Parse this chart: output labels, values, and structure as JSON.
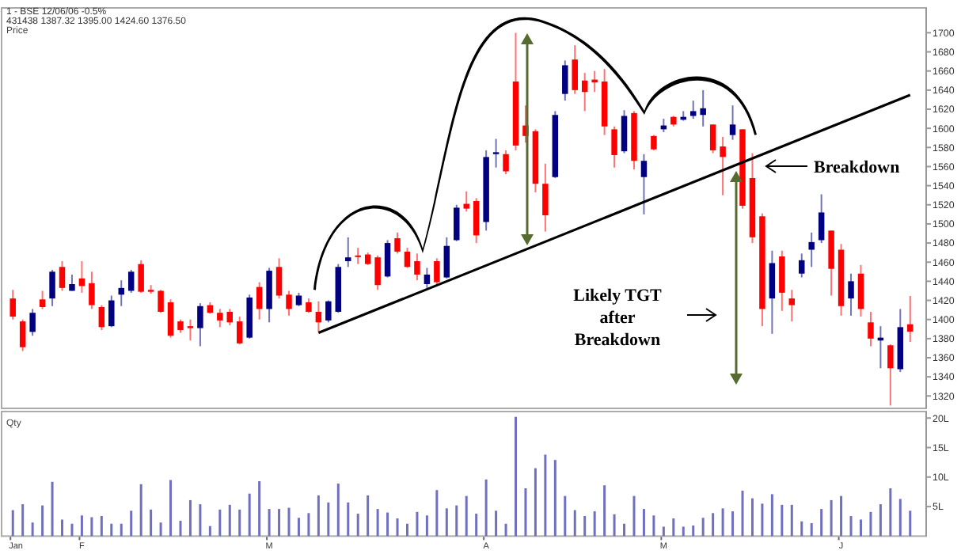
{
  "chart_data": [
    {
      "type": "candlestick",
      "title": "1 - BSE 12/06/06 -0.5%",
      "subtitle": "431438 1387.32 1395.00 1424.60 1376.50",
      "ylabel": "Price",
      "categories": [
        null,
        null,
        null,
        null,
        null,
        null,
        null,
        null,
        null,
        null,
        null,
        null,
        null,
        null,
        null,
        null,
        null,
        null,
        null,
        null,
        null,
        null,
        null,
        null,
        null,
        null,
        null,
        null,
        null,
        null,
        null,
        null,
        null,
        null,
        null,
        null,
        null,
        null,
        null,
        null,
        null,
        null,
        null,
        null,
        null,
        null,
        null,
        null,
        null,
        null,
        null,
        null,
        null,
        null,
        null,
        null,
        null,
        null,
        null,
        null,
        null,
        null,
        null,
        null,
        null,
        null,
        null,
        null,
        null,
        null,
        null,
        null,
        null,
        null,
        null,
        null,
        null,
        null,
        null,
        null,
        null,
        null,
        null,
        null,
        null,
        null,
        null,
        null,
        null,
        null,
        null,
        null
      ],
      "ohlc": [
        [
          1422,
          1431,
          1400,
          1403
        ],
        [
          1398,
          1400,
          1367,
          1371
        ],
        [
          1387,
          1411,
          1383,
          1407
        ],
        [
          1421,
          1430,
          1411,
          1413
        ],
        [
          1422,
          1452,
          1414,
          1450
        ],
        [
          1455,
          1461,
          1430,
          1433
        ],
        [
          1430,
          1447,
          1430,
          1437
        ],
        [
          1443,
          1461,
          1428,
          1435
        ],
        [
          1438,
          1450,
          1411,
          1415
        ],
        [
          1413,
          1415,
          1389,
          1392
        ],
        [
          1393,
          1425,
          1392,
          1420
        ],
        [
          1426,
          1441,
          1414,
          1433
        ],
        [
          1430,
          1452,
          1428,
          1450
        ],
        [
          1458,
          1462,
          1428,
          1429
        ],
        [
          1431,
          1436,
          1427,
          1429
        ],
        [
          1430,
          1431,
          1407,
          1408
        ],
        [
          1418,
          1421,
          1381,
          1383
        ],
        [
          1398,
          1400,
          1386,
          1389
        ],
        [
          1393,
          1400,
          1378,
          1391
        ],
        [
          1391,
          1417,
          1372,
          1414
        ],
        [
          1415,
          1418,
          1406,
          1407
        ],
        [
          1407,
          1411,
          1392,
          1399
        ],
        [
          1408,
          1411,
          1394,
          1397
        ],
        [
          1398,
          1403,
          1374,
          1375
        ],
        [
          1381,
          1426,
          1380,
          1423
        ],
        [
          1434,
          1439,
          1400,
          1411
        ],
        [
          1411,
          1454,
          1397,
          1451
        ],
        [
          1455,
          1464,
          1422,
          1425
        ],
        [
          1426,
          1430,
          1404,
          1411
        ],
        [
          1415,
          1428,
          1414,
          1425
        ],
        [
          1418,
          1422,
          1407,
          1408
        ],
        [
          1408,
          1419,
          1387,
          1397
        ],
        [
          1399,
          1420,
          1397,
          1419
        ],
        [
          1408,
          1458,
          1407,
          1455
        ],
        [
          1461,
          1486,
          1455,
          1465
        ],
        [
          1467,
          1475,
          1458,
          1466
        ],
        [
          1468,
          1470,
          1457,
          1458
        ],
        [
          1465,
          1467,
          1431,
          1436
        ],
        [
          1445,
          1483,
          1444,
          1480
        ],
        [
          1485,
          1491,
          1469,
          1471
        ],
        [
          1471,
          1475,
          1454,
          1455
        ],
        [
          1461,
          1469,
          1441,
          1447
        ],
        [
          1437,
          1454,
          1433,
          1447
        ],
        [
          1461,
          1464,
          1437,
          1439
        ],
        [
          1444,
          1486,
          1443,
          1477
        ],
        [
          1483,
          1520,
          1482,
          1517
        ],
        [
          1521,
          1534,
          1513,
          1516
        ],
        [
          1524,
          1527,
          1480,
          1488
        ],
        [
          1502,
          1577,
          1493,
          1570
        ],
        [
          1573,
          1589,
          1559,
          1575
        ],
        [
          1573,
          1577,
          1552,
          1555
        ],
        [
          1649,
          1700,
          1577,
          1582
        ],
        [
          1603,
          1624,
          1585,
          1592
        ],
        [
          1597,
          1599,
          1533,
          1542
        ],
        [
          1542,
          1563,
          1492,
          1509
        ],
        [
          1549,
          1618,
          1548,
          1614
        ],
        [
          1636,
          1671,
          1629,
          1666
        ],
        [
          1672,
          1687,
          1636,
          1640
        ],
        [
          1650,
          1658,
          1618,
          1638
        ],
        [
          1651,
          1660,
          1638,
          1648
        ],
        [
          1649,
          1662,
          1593,
          1602
        ],
        [
          1599,
          1602,
          1559,
          1572
        ],
        [
          1576,
          1619,
          1574,
          1613
        ],
        [
          1616,
          1618,
          1557,
          1566
        ],
        [
          1549,
          1573,
          1510,
          1566
        ],
        [
          1592,
          1593,
          1577,
          1578
        ],
        [
          1599,
          1610,
          1596,
          1603
        ],
        [
          1612,
          1613,
          1602,
          1604
        ],
        [
          1609,
          1618,
          1608,
          1612
        ],
        [
          1613,
          1629,
          1610,
          1618
        ],
        [
          1614,
          1640,
          1602,
          1621
        ],
        [
          1604,
          1604,
          1574,
          1577
        ],
        [
          1581,
          1591,
          1530,
          1570
        ],
        [
          1593,
          1624,
          1588,
          1604
        ],
        [
          1599,
          1599,
          1516,
          1519
        ],
        [
          1548,
          1574,
          1480,
          1486
        ],
        [
          1508,
          1511,
          1393,
          1411
        ],
        [
          1422,
          1472,
          1385,
          1459
        ],
        [
          1466,
          1472,
          1409,
          1428
        ],
        [
          1422,
          1431,
          1398,
          1415
        ],
        [
          1448,
          1469,
          1444,
          1462
        ],
        [
          1473,
          1491,
          1455,
          1481
        ],
        [
          1483,
          1531,
          1480,
          1512
        ],
        [
          1493,
          1493,
          1425,
          1453
        ],
        [
          1473,
          1479,
          1404,
          1414
        ],
        [
          1422,
          1448,
          1404,
          1440
        ],
        [
          1448,
          1457,
          1403,
          1411
        ],
        [
          1397,
          1408,
          1372,
          1380
        ],
        [
          1378,
          1393,
          1349,
          1381
        ],
        [
          1373,
          1374,
          1310,
          1349
        ],
        [
          1348,
          1411,
          1345,
          1392
        ],
        [
          1395,
          1424.6,
          1376.5,
          1387.32
        ]
      ],
      "colors": [
        "#ff0000",
        "#ff0000",
        "#000080",
        "#ff0000",
        "#000080",
        "#ff0000",
        "#000080",
        "#ff0000",
        "#ff0000",
        "#ff0000",
        "#000080",
        "#000080",
        "#000080",
        "#ff0000",
        "#ff0000",
        "#ff0000",
        "#ff0000",
        "#ff0000",
        "#ff0000",
        "#000080",
        "#ff0000",
        "#ff0000",
        "#ff0000",
        "#ff0000",
        "#000080",
        "#ff0000",
        "#000080",
        "#ff0000",
        "#ff0000",
        "#000080",
        "#ff0000",
        "#ff0000",
        "#000080",
        "#000080",
        "#000080",
        "#ff0000",
        "#ff0000",
        "#ff0000",
        "#000080",
        "#ff0000",
        "#ff0000",
        "#ff0000",
        "#000080",
        "#ff0000",
        "#000080",
        "#000080",
        "#ff0000",
        "#ff0000",
        "#000080",
        "#000080",
        "#ff0000",
        "#ff0000",
        "#ff0000",
        "#ff0000",
        "#ff0000",
        "#000080",
        "#000080",
        "#ff0000",
        "#ff0000",
        "#ff0000",
        "#ff0000",
        "#ff0000",
        "#000080",
        "#ff0000",
        "#000080",
        "#ff0000",
        "#000080",
        "#ff0000",
        "#000080",
        "#000080",
        "#000080",
        "#ff0000",
        "#ff0000",
        "#000080",
        "#ff0000",
        "#ff0000",
        "#ff0000",
        "#000080",
        "#ff0000",
        "#ff0000",
        "#000080",
        "#000080",
        "#000080",
        "#ff0000",
        "#ff0000",
        "#000080",
        "#ff0000",
        "#ff0000",
        "#000080",
        "#ff0000",
        "#000080",
        "#ff0000"
      ],
      "series": [
        {
          "type": "line",
          "color": "#000000",
          "values": [
            null,
            null,
            null,
            null,
            null,
            null,
            null,
            null,
            null,
            null,
            null,
            null,
            null,
            null,
            null,
            null,
            null,
            null,
            null,
            null,
            null,
            null,
            null,
            null,
            null,
            null,
            null,
            null,
            null,
            null,
            null,
            1386,
            null,
            null,
            null,
            null,
            null,
            null,
            null,
            null,
            null,
            null,
            null,
            null,
            null,
            null,
            null,
            null,
            null,
            null,
            null,
            null,
            null,
            null,
            null,
            null,
            null,
            null,
            null,
            null,
            null,
            null,
            null,
            null,
            null,
            null,
            null,
            null,
            null,
            null,
            null,
            null,
            null,
            null,
            null,
            null,
            null,
            null,
            null,
            null,
            null,
            null,
            null,
            null,
            null,
            null,
            null,
            null,
            null,
            null,
            null,
            1635
          ]
        }
      ],
      "ylim": [
        1307,
        1726
      ],
      "yticks": [
        1320,
        1340,
        1360,
        1380,
        1400,
        1420,
        1440,
        1460,
        1480,
        1500,
        1520,
        1540,
        1560,
        1580,
        1600,
        1620,
        1640,
        1660,
        1680,
        1700
      ],
      "tick_labels": "y",
      "grid": false,
      "annotations": [
        "Breakdown",
        "Likely TGT after Breakdown"
      ]
    },
    {
      "type": "bar",
      "ylabel": "Qty",
      "color": "#7070c0",
      "categories": [
        "Jan",
        null,
        null,
        null,
        null,
        null,
        null,
        "F",
        null,
        null,
        null,
        null,
        null,
        null,
        null,
        null,
        null,
        null,
        null,
        null,
        null,
        null,
        null,
        null,
        null,
        null,
        "M",
        null,
        null,
        null,
        null,
        null,
        null,
        null,
        null,
        null,
        null,
        null,
        null,
        null,
        null,
        null,
        null,
        null,
        null,
        null,
        null,
        null,
        "A",
        null,
        null,
        null,
        null,
        null,
        null,
        null,
        null,
        null,
        null,
        null,
        null,
        null,
        null,
        null,
        null,
        null,
        "M",
        null,
        null,
        null,
        null,
        null,
        null,
        null,
        null,
        null,
        null,
        null,
        null,
        null,
        null,
        null,
        null,
        null,
        "J",
        null,
        null,
        null,
        null,
        null,
        null,
        null
      ],
      "values": [
        4.4,
        5.4,
        2.3,
        5.2,
        9.2,
        2.8,
        2.1,
        3.5,
        3.2,
        3.4,
        2.1,
        2.1,
        4.3,
        8.8,
        4.5,
        2.3,
        9.5,
        2.6,
        6.1,
        5.4,
        1.7,
        4.5,
        5.3,
        4.5,
        7.2,
        9.3,
        4.6,
        4.6,
        4.8,
        3.1,
        3.9,
        6.9,
        5.7,
        8.9,
        5.7,
        3.8,
        6.9,
        4.6,
        4.0,
        3.0,
        2.1,
        4.1,
        3.5,
        7.8,
        4.7,
        5.2,
        6.8,
        3.8,
        9.6,
        4.3,
        2.1,
        20.2,
        8.1,
        11.5,
        13.8,
        12.9,
        6.8,
        4.4,
        3.4,
        4.2,
        8.6,
        3.7,
        2.1,
        6.8,
        4.6,
        3.5,
        1.6,
        3.0,
        1.6,
        1.8,
        3.1,
        3.9,
        4.7,
        4.2,
        7.7,
        6.4,
        5.5,
        7.1,
        5.3,
        5.3,
        2.5,
        2.2,
        4.6,
        6.1,
        6.8,
        3.4,
        2.8,
        4.1,
        5.4,
        8.1,
        6.3,
        4.3
      ],
      "ylim": [
        0,
        21.1
      ],
      "yticks": [
        {
          "value": 5,
          "label": "5L"
        },
        {
          "value": 10,
          "label": "10L"
        },
        {
          "value": 15,
          "label": "15L"
        },
        {
          "value": 20,
          "label": "20L"
        }
      ],
      "grid": false
    }
  ]
}
